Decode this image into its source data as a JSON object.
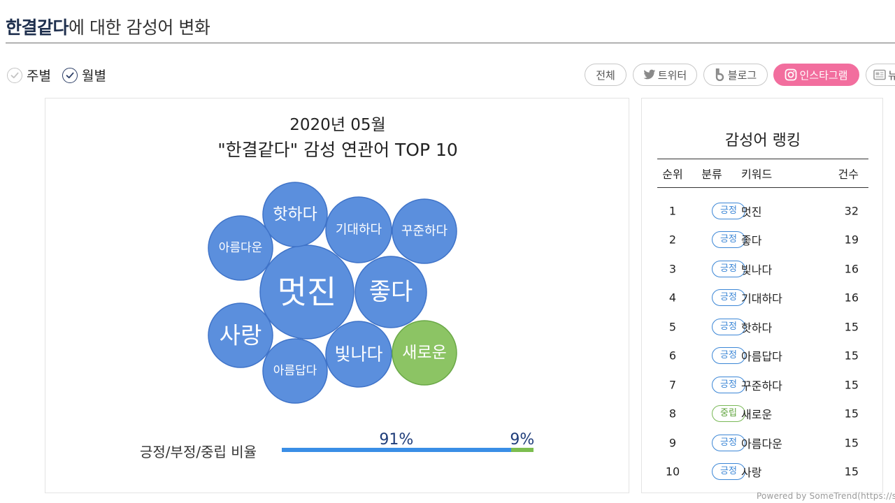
{
  "header": {
    "keyword": "한결같다",
    "suffix": "에 대한 감성어 변화"
  },
  "period": {
    "weekly_label": "주별",
    "monthly_label": "월별",
    "selected": "monthly"
  },
  "channels": [
    {
      "label": "전체",
      "icon": "",
      "active": false
    },
    {
      "label": "트위터",
      "icon": "twitter-icon",
      "active": false
    },
    {
      "label": "블로그",
      "icon": "blog-icon",
      "active": false
    },
    {
      "label": "인스타그램",
      "icon": "instagram-icon",
      "active": true
    },
    {
      "label": "뉴",
      "icon": "news-icon",
      "active": false
    }
  ],
  "chart": {
    "title_line1": "2020년 05월",
    "title_line2": "\"한결같다\" 감성 연관어 TOP 10",
    "ratio_label": "긍정/부정/중립 비율",
    "ratio_pos_text": "91%",
    "ratio_neu_text": "9%"
  },
  "chart_data": {
    "type": "bubble",
    "title": "\"한결같다\" 감성 연관어 TOP 10",
    "period": "2020년 05월",
    "colors": {
      "positive": "#5b8fdd",
      "neutral": "#8cc464"
    },
    "bubbles": [
      {
        "keyword": "멋진",
        "count": 32,
        "sentiment": "positive"
      },
      {
        "keyword": "좋다",
        "count": 19,
        "sentiment": "positive"
      },
      {
        "keyword": "빛나다",
        "count": 16,
        "sentiment": "positive"
      },
      {
        "keyword": "기대하다",
        "count": 16,
        "sentiment": "positive"
      },
      {
        "keyword": "핫하다",
        "count": 15,
        "sentiment": "positive"
      },
      {
        "keyword": "아름답다",
        "count": 15,
        "sentiment": "positive"
      },
      {
        "keyword": "꾸준하다",
        "count": 15,
        "sentiment": "positive"
      },
      {
        "keyword": "새로운",
        "count": 15,
        "sentiment": "neutral"
      },
      {
        "keyword": "아름다운",
        "count": 15,
        "sentiment": "positive"
      },
      {
        "keyword": "사랑",
        "count": 15,
        "sentiment": "positive"
      }
    ],
    "ratio": {
      "positive": 91,
      "negative": 0,
      "neutral": 9
    },
    "ratio_colors": {
      "positive": "#3a8ee6",
      "neutral": "#7cbd4f"
    }
  },
  "ranking": {
    "title": "감성어 랭킹",
    "headers": {
      "rank": "순위",
      "category": "분류",
      "keyword": "키워드",
      "count": "건수"
    },
    "rows": [
      {
        "rank": "1",
        "category": "긍정",
        "keyword": "멋진",
        "count": "32",
        "type": "positive"
      },
      {
        "rank": "2",
        "category": "긍정",
        "keyword": "좋다",
        "count": "19",
        "type": "positive"
      },
      {
        "rank": "3",
        "category": "긍정",
        "keyword": "빛나다",
        "count": "16",
        "type": "positive"
      },
      {
        "rank": "4",
        "category": "긍정",
        "keyword": "기대하다",
        "count": "16",
        "type": "positive"
      },
      {
        "rank": "5",
        "category": "긍정",
        "keyword": "핫하다",
        "count": "15",
        "type": "positive"
      },
      {
        "rank": "6",
        "category": "긍정",
        "keyword": "아름답다",
        "count": "15",
        "type": "positive"
      },
      {
        "rank": "7",
        "category": "긍정",
        "keyword": "꾸준하다",
        "count": "15",
        "type": "positive"
      },
      {
        "rank": "8",
        "category": "중립",
        "keyword": "새로운",
        "count": "15",
        "type": "neutral"
      },
      {
        "rank": "9",
        "category": "긍정",
        "keyword": "아름다운",
        "count": "15",
        "type": "positive"
      },
      {
        "rank": "10",
        "category": "긍정",
        "keyword": "사랑",
        "count": "15",
        "type": "positive"
      }
    ]
  },
  "footer": {
    "credit": "Powered by SomeTrend(https://sc"
  }
}
